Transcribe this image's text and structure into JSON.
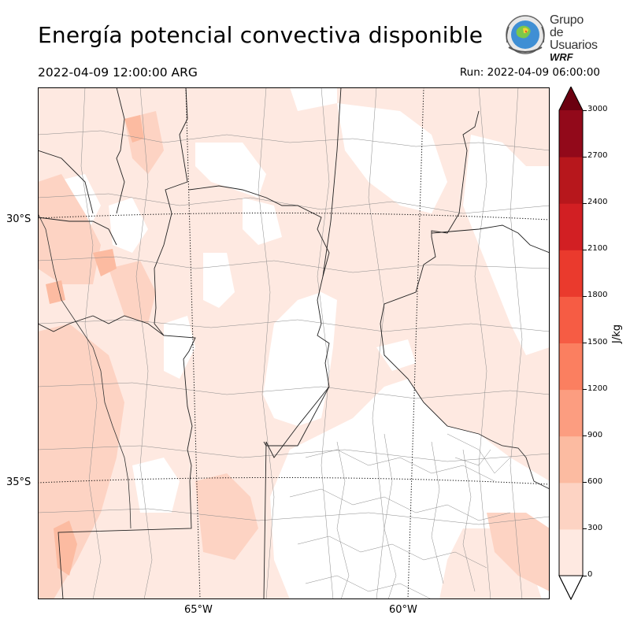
{
  "title": "Energía potencial convectiva disponible",
  "valid_time": "2022-04-09 12:00:00 ARG",
  "run_time": "Run: 2022-04-09 06:00:00",
  "logo": {
    "line1": "Grupo de",
    "line2": "Usuarios",
    "line3": "WRF"
  },
  "map": {
    "variable": "CAPE",
    "lat_labels": [
      "30°S",
      "35°S"
    ],
    "lon_labels": [
      "65°W",
      "60°W"
    ]
  },
  "colorbar": {
    "unit": "J/kg",
    "ticks": [
      "0",
      "300",
      "600",
      "900",
      "1200",
      "1500",
      "1800",
      "2100",
      "2400",
      "2700",
      "3000"
    ],
    "colors": [
      "#fee9e1",
      "#fdd3c3",
      "#fcbba1",
      "#fc9d80",
      "#fb7f60",
      "#f65c44",
      "#ea3a2d",
      "#d21f23",
      "#b7171c",
      "#92091a",
      "#6b0010"
    ],
    "extend": "both"
  },
  "chart_data": {
    "type": "heatmap",
    "title": "Energía potencial convectiva disponible",
    "unit": "J/kg",
    "levels": [
      0,
      300,
      600,
      900,
      1200,
      1500,
      1800,
      2100,
      2400,
      2700,
      3000
    ],
    "x_ticks": [
      "65°W",
      "60°W"
    ],
    "y_ticks": [
      "30°S",
      "35°S"
    ]
  }
}
